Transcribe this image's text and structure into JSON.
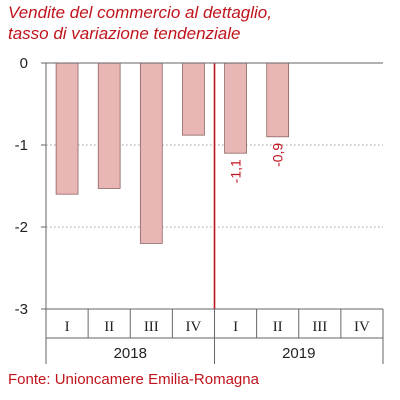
{
  "chart_data": {
    "type": "bar",
    "title_lines": [
      "Vendite del commercio al dettaglio,",
      "tasso di variazione tendenziale"
    ],
    "categories": [
      "I",
      "II",
      "III",
      "IV",
      "I",
      "II",
      "III",
      "IV"
    ],
    "groups": [
      {
        "label": "2018",
        "count": 4
      },
      {
        "label": "2019",
        "count": 4
      }
    ],
    "values": [
      -1.6,
      -1.53,
      -2.2,
      -0.88,
      -1.1,
      -0.9,
      null,
      null
    ],
    "data_labels": [
      "",
      "",
      "",
      "",
      "-1,1",
      "-0,9",
      "",
      ""
    ],
    "yticks": [
      0,
      -1,
      -2,
      -3
    ],
    "ytick_labels": [
      "0",
      "-1",
      "-2",
      "-3"
    ],
    "ylim": [
      -3,
      0
    ],
    "grid": true,
    "bar_color": "#e8b7b5",
    "bar_edge_color": "#8c6362",
    "marker_line_color": "#c0141c",
    "source": "Fonte: Unioncamere Emilia-Romagna"
  }
}
